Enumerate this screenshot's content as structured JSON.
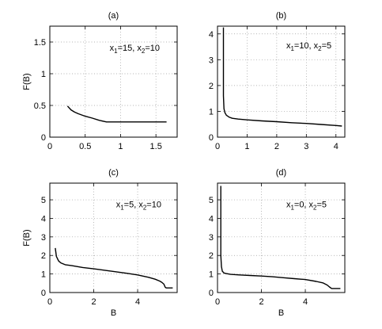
{
  "chart_data": [
    {
      "type": "line",
      "title": "(a)",
      "ylabel": "F(B)",
      "xlabel": "",
      "annotation": {
        "x1": "15",
        "x2": "10"
      },
      "xlim": [
        0,
        1.8
      ],
      "ylim": [
        0,
        1.75
      ],
      "xticks": [
        0,
        0.5,
        1,
        1.5
      ],
      "xtick_labels": [
        "0",
        "0.5",
        "1",
        "1.5"
      ],
      "yticks": [
        0,
        0.5,
        1,
        1.5
      ],
      "ytick_labels": [
        "0",
        "0.5",
        "1",
        "1.5"
      ],
      "grid": true,
      "series": [
        {
          "x": [
            0.25,
            0.3,
            0.35,
            0.4,
            0.5,
            0.6,
            0.7,
            0.8,
            0.9,
            1.0,
            1.2,
            1.4,
            1.65
          ],
          "y": [
            0.49,
            0.43,
            0.395,
            0.37,
            0.33,
            0.3,
            0.265,
            0.24,
            0.24,
            0.24,
            0.24,
            0.24,
            0.24
          ]
        }
      ]
    },
    {
      "type": "line",
      "title": "(b)",
      "ylabel": "",
      "xlabel": "",
      "annotation": {
        "x1": "10",
        "x2": "5"
      },
      "xlim": [
        0,
        4.3
      ],
      "ylim": [
        0,
        4.3
      ],
      "xticks": [
        0,
        1,
        2,
        3,
        4
      ],
      "xtick_labels": [
        "0",
        "1",
        "2",
        "3",
        "4"
      ],
      "yticks": [
        0,
        1,
        2,
        3,
        4
      ],
      "ytick_labels": [
        "0",
        "1",
        "2",
        "3",
        "4"
      ],
      "grid": true,
      "series": [
        {
          "x": [
            0.2,
            0.2,
            0.22,
            0.25,
            0.3,
            0.4,
            0.5,
            0.7,
            1.0,
            1.5,
            2.0,
            2.5,
            3.0,
            3.5,
            4.0,
            4.2
          ],
          "y": [
            4.25,
            1.6,
            1.1,
            0.95,
            0.85,
            0.77,
            0.73,
            0.7,
            0.67,
            0.63,
            0.6,
            0.56,
            0.53,
            0.49,
            0.45,
            0.43
          ]
        }
      ]
    },
    {
      "type": "line",
      "title": "(c)",
      "ylabel": "F(B)",
      "xlabel": "B",
      "annotation": {
        "x1": "5",
        "x2": "10"
      },
      "xlim": [
        0,
        5.8
      ],
      "ylim": [
        0,
        5.9
      ],
      "xticks": [
        0,
        2,
        4
      ],
      "xtick_labels": [
        "0",
        "2",
        "4"
      ],
      "yticks": [
        0,
        1,
        2,
        3,
        4,
        5
      ],
      "ytick_labels": [
        "0",
        "1",
        "2",
        "3",
        "4",
        "5"
      ],
      "grid": true,
      "series": [
        {
          "x": [
            0.25,
            0.3,
            0.4,
            0.5,
            0.7,
            1.0,
            1.5,
            2.0,
            2.5,
            3.0,
            3.5,
            4.0,
            4.5,
            4.8,
            5.0,
            5.1,
            5.2,
            5.25,
            5.3,
            5.5,
            5.6
          ],
          "y": [
            2.4,
            1.95,
            1.7,
            1.6,
            1.5,
            1.45,
            1.35,
            1.28,
            1.2,
            1.12,
            1.04,
            0.95,
            0.82,
            0.72,
            0.62,
            0.55,
            0.45,
            0.3,
            0.25,
            0.25,
            0.25
          ]
        }
      ]
    },
    {
      "type": "line",
      "title": "(d)",
      "ylabel": "",
      "xlabel": "B",
      "annotation": {
        "x1": "0",
        "x2": "5"
      },
      "xlim": [
        0,
        5.8
      ],
      "ylim": [
        0,
        5.9
      ],
      "xticks": [
        0,
        2,
        4
      ],
      "xtick_labels": [
        "0",
        "2",
        "4"
      ],
      "yticks": [
        0,
        1,
        2,
        3,
        4,
        5
      ],
      "ytick_labels": [
        "0",
        "1",
        "2",
        "3",
        "4",
        "5"
      ],
      "grid": true,
      "series": [
        {
          "x": [
            0.15,
            0.15,
            0.18,
            0.22,
            0.3,
            0.4,
            0.6,
            1.0,
            1.5,
            2.0,
            2.5,
            3.0,
            3.5,
            4.0,
            4.5,
            4.8,
            5.0,
            5.1,
            5.2,
            5.3,
            5.6
          ],
          "y": [
            5.75,
            2.0,
            1.4,
            1.15,
            1.05,
            1.02,
            0.98,
            0.95,
            0.92,
            0.89,
            0.85,
            0.8,
            0.75,
            0.7,
            0.6,
            0.52,
            0.4,
            0.3,
            0.22,
            0.22,
            0.22
          ]
        }
      ]
    }
  ]
}
